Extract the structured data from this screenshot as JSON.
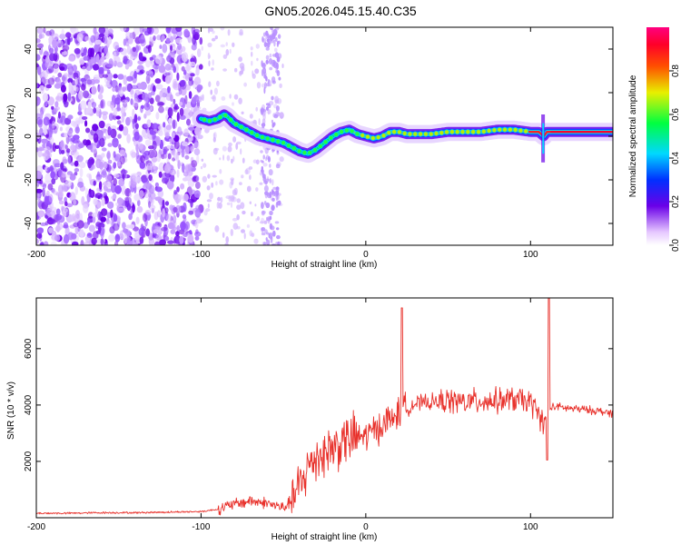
{
  "title": "GN05.2026.045.15.40.C35",
  "chart_data": [
    {
      "type": "heatmap",
      "name": "spectrogram",
      "xlabel": "Height of straight line (km)",
      "ylabel": "Frequency (Hz)",
      "xlim": [
        -200,
        150
      ],
      "ylim": [
        -50,
        50
      ],
      "x_ticks": [
        "-200",
        "-100",
        "0",
        "100"
      ],
      "y_ticks": [
        "-40",
        "-20",
        "0",
        "20",
        "40"
      ],
      "colorbar": {
        "label": "Normalized spectral amplitude",
        "range": [
          0,
          1
        ],
        "ticks": [
          "0.0",
          "0.2",
          "0.4",
          "0.6",
          "0.8"
        ]
      },
      "ridge": {
        "x": [
          -100,
          -95,
          -90,
          -86,
          -84,
          -80,
          -75,
          -70,
          -65,
          -60,
          -55,
          -50,
          -45,
          -40,
          -35,
          -30,
          -25,
          -20,
          -15,
          -10,
          -5,
          0,
          5,
          10,
          15,
          20,
          25,
          30,
          40,
          50,
          60,
          70,
          80,
          90,
          100,
          105,
          108,
          110,
          120,
          130,
          140,
          150
        ],
        "y": [
          8,
          7,
          8,
          10,
          9,
          6,
          4,
          2,
          0,
          -1,
          -2,
          -3,
          -5,
          -7,
          -8,
          -6,
          -3,
          0,
          2,
          3,
          1,
          0,
          -1,
          0,
          2,
          2,
          1,
          1,
          1,
          2,
          2,
          2,
          3,
          3,
          2,
          2,
          0,
          2,
          2,
          2,
          2,
          2
        ]
      }
    },
    {
      "type": "line",
      "name": "snr",
      "xlabel": "Height of straight line (km)",
      "ylabel": "SNR (10 * v/v)",
      "xlim": [
        -200,
        150
      ],
      "ylim": [
        0,
        7800
      ],
      "x_ticks": [
        "-200",
        "-100",
        "0",
        "100"
      ],
      "y_ticks": [
        "2000",
        "4000",
        "6000"
      ],
      "color": "#e8312b",
      "series": [
        {
          "name": "SNR trend",
          "x": [
            -200,
            -180,
            -160,
            -140,
            -120,
            -100,
            -90,
            -80,
            -70,
            -60,
            -50,
            -45,
            -40,
            -35,
            -30,
            -25,
            -20,
            -15,
            -10,
            -5,
            0,
            5,
            10,
            15,
            20,
            25,
            30,
            40,
            50,
            60,
            70,
            80,
            90,
            100,
            108,
            110,
            112,
            115,
            120,
            130,
            140,
            150
          ],
          "y": [
            160,
            160,
            180,
            180,
            200,
            220,
            300,
            480,
            600,
            520,
            350,
            600,
            1100,
            1800,
            2200,
            2300,
            2500,
            2650,
            2800,
            2850,
            2900,
            3100,
            3300,
            3500,
            3700,
            3900,
            4050,
            4100,
            4150,
            4100,
            4150,
            4150,
            4200,
            4100,
            3400,
            3600,
            3900,
            3950,
            3900,
            3850,
            3800,
            3700
          ]
        }
      ],
      "spikes": [
        {
          "x": 22,
          "y": 7450
        },
        {
          "x": 111,
          "y": 7800
        },
        {
          "x": 110,
          "y": 2050
        }
      ]
    }
  ]
}
